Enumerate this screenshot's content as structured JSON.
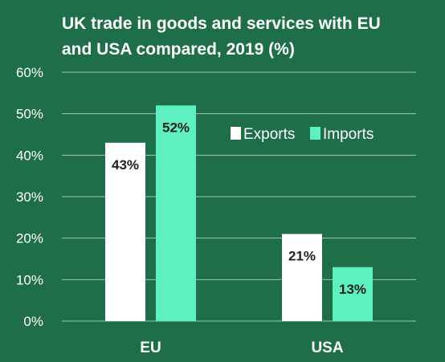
{
  "chart_data": {
    "type": "bar",
    "title_lines": [
      "UK trade in goods and services with EU",
      "and USA compared, 2019 (%)"
    ],
    "categories": [
      "EU",
      "USA"
    ],
    "series": [
      {
        "name": "Exports",
        "values": [
          43,
          21
        ],
        "labels": [
          "43%",
          "21%"
        ],
        "color": "#ffffff"
      },
      {
        "name": "Imports",
        "values": [
          52,
          13
        ],
        "labels": [
          "52%",
          "13%"
        ],
        "color": "#5ef0c0"
      }
    ],
    "ylim": [
      0,
      60
    ],
    "yticks": [
      0,
      10,
      20,
      30,
      40,
      50,
      60
    ],
    "ytick_labels": [
      "0%",
      "10%",
      "20%",
      "30%",
      "40%",
      "50%",
      "60%"
    ],
    "grid": true,
    "legend_position": "top-right",
    "colors": {
      "background": "#1e6e4a",
      "gridline": "#9ec9b5"
    }
  }
}
